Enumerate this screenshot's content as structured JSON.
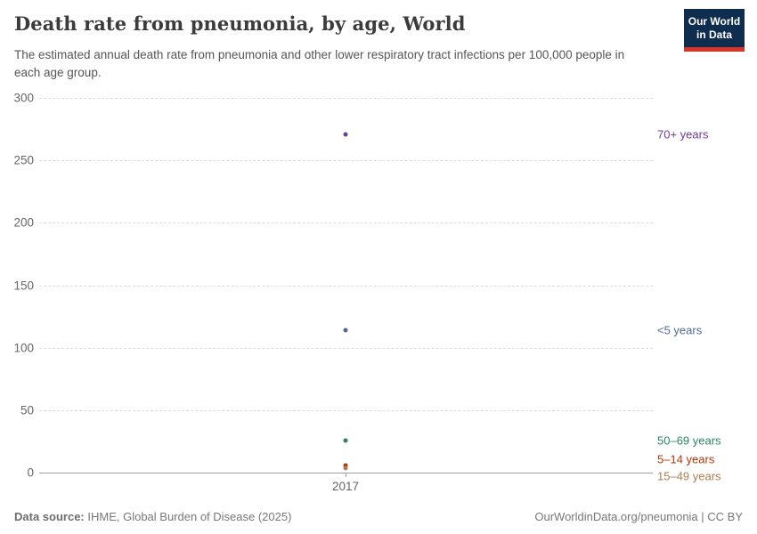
{
  "header": {
    "title": "Death rate from pneumonia, by age, World",
    "subtitle": "The estimated annual death rate from pneumonia and other lower respiratory tract infections per 100,000 people in each age group.",
    "logo": {
      "line1": "Our World",
      "line2": "in Data",
      "bg_color": "#0f2d4e",
      "bar_color": "#d8352a"
    }
  },
  "chart_data": {
    "type": "scatter",
    "x": [
      2017
    ],
    "x_tick_label": "2017",
    "xlabel": "",
    "ylabel": "",
    "ylim": [
      0,
      300
    ],
    "yticks": [
      0,
      50,
      100,
      150,
      200,
      250,
      300
    ],
    "grid": "horizontal-dashed",
    "legend_position": "right-edge-labels",
    "series": [
      {
        "name": "70+ years",
        "values": [
          271
        ],
        "color": "#6D3E91",
        "label_dy": 0
      },
      {
        "name": "<5 years",
        "values": [
          114
        ],
        "color": "#4C6A9C",
        "label_dy": 0
      },
      {
        "name": "50–69 years",
        "values": [
          26
        ],
        "color": "#2C8465",
        "label_dy": 0
      },
      {
        "name": "5–14 years",
        "values": [
          5.7
        ],
        "color": "#B13507",
        "label_dy": -7
      },
      {
        "name": "15–49 years",
        "values": [
          3.9
        ],
        "color": "#B07C4F",
        "label_dy": 9
      }
    ]
  },
  "footer": {
    "source_label": "Data source:",
    "source_text": "IHME, Global Burden of Disease (2025)",
    "credit": "OurWorldinData.org/pneumonia | CC BY"
  }
}
